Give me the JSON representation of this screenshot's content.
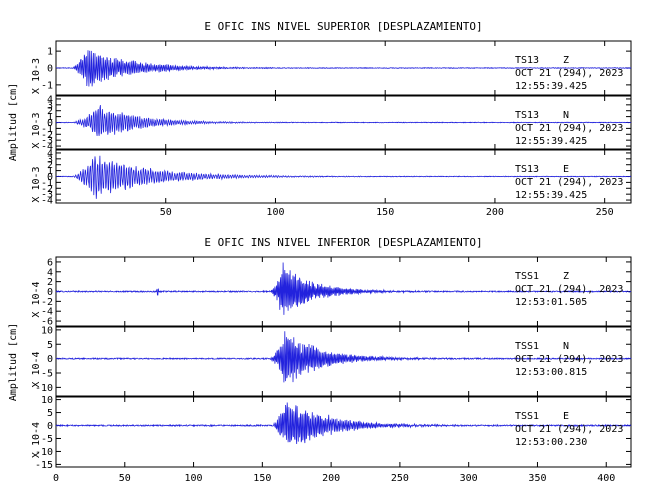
{
  "colors": {
    "trace": "#2222dd",
    "axes": "#000000",
    "background": "#ffffff"
  },
  "chart_data": [
    {
      "type": "line",
      "title": "E OFIC INS NIVEL SUPERIOR [DESPLAZAMIENTO]",
      "xlim": [
        0,
        262
      ],
      "x_ticks": [
        50,
        100,
        150,
        200,
        250
      ],
      "ylabel": "Amplitud [cm]",
      "grid": false,
      "panels": [
        {
          "scale_label": "X 10-3",
          "ylim": [
            -1.6,
            1.6
          ],
          "yticks": [
            -1,
            0,
            1
          ],
          "station": "TS13",
          "component": "Z",
          "date": "OCT 21 (294), 2023",
          "time": "12:55:39.425",
          "signal": {
            "start": 0,
            "onset": 7,
            "peak_time": 14,
            "peak": 1.3,
            "decay": 20,
            "noise": 0.02,
            "period": 0.8
          }
        },
        {
          "scale_label": "X 10-3",
          "ylim": [
            -4.5,
            4.5
          ],
          "yticks": [
            -4,
            -3,
            -2,
            -1,
            0,
            1,
            2,
            3,
            4
          ],
          "station": "TS13",
          "component": "N",
          "date": "OCT 21 (294), 2023",
          "time": "12:55:39.425",
          "signal": {
            "start": 0,
            "onset": 7,
            "peak_time": 20,
            "peak": 3.2,
            "decay": 18,
            "noise": 0.05,
            "period": 1.0
          }
        },
        {
          "scale_label": "X 10-3",
          "ylim": [
            -4.5,
            4.5
          ],
          "yticks": [
            -4,
            -3,
            -2,
            -1,
            0,
            1,
            2,
            3,
            4
          ],
          "station": "TS13",
          "component": "E",
          "date": "OCT 21 (294), 2023",
          "time": "12:55:39.425",
          "signal": {
            "start": 0,
            "onset": 7,
            "peak_time": 18,
            "peak": 4.0,
            "decay": 25,
            "noise": 0.05,
            "period": 1.1
          }
        }
      ]
    },
    {
      "type": "line",
      "title": "E OFIC INS NIVEL INFERIOR [DESPLAZAMIENTO]",
      "xlim": [
        0,
        418
      ],
      "x_ticks": [
        0,
        50,
        100,
        150,
        200,
        250,
        300,
        350,
        400
      ],
      "ylabel": "Amplitud [cm]",
      "grid": false,
      "panels": [
        {
          "scale_label": "X 10-4",
          "ylim": [
            -7,
            7
          ],
          "yticks": [
            -6,
            -4,
            -2,
            0,
            2,
            4,
            6
          ],
          "station": "TSS1",
          "component": "Z",
          "date": "OCT 21 (294), 2023",
          "time": "12:53:01.505",
          "signal": {
            "start": 0,
            "onset": 155,
            "peak_time": 165,
            "peak": 6.0,
            "decay": 22,
            "noise": 0.12,
            "period": 1.0,
            "spike": {
              "t": 74,
              "a": 0.6
            }
          }
        },
        {
          "scale_label": "X 10-4",
          "ylim": [
            -13,
            11
          ],
          "yticks": [
            -10,
            -5,
            0,
            5,
            10
          ],
          "station": "TSS1",
          "component": "N",
          "date": "OCT 21 (294), 2023",
          "time": "12:53:00.815",
          "signal": {
            "start": 0,
            "onset": 155,
            "peak_time": 167,
            "peak": 11.0,
            "decay": 25,
            "noise": 0.2,
            "period": 1.1
          }
        },
        {
          "scale_label": "X 10-4",
          "ylim": [
            -16,
            11
          ],
          "yticks": [
            -15,
            -10,
            -5,
            0,
            5,
            10
          ],
          "station": "TSS1",
          "component": "E",
          "date": "OCT 21 (294), 2023",
          "time": "12:53:00.230",
          "signal": {
            "start": 0,
            "onset": 157,
            "peak_time": 168,
            "peak": 12.0,
            "decay": 28,
            "noise": 0.25,
            "period": 1.2
          }
        }
      ]
    }
  ]
}
